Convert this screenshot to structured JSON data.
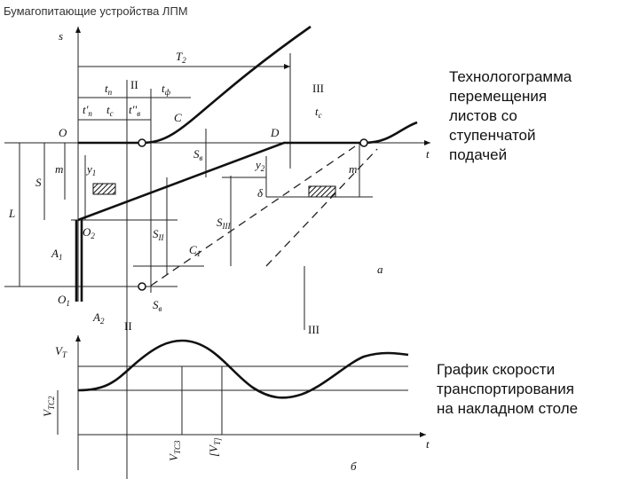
{
  "header": {
    "title": "Бумагопитающие устройства ЛПМ"
  },
  "captions": [
    {
      "lines": [
        "Технологограмма",
        "перемещения",
        "листов со",
        "ступенчатой",
        "подачей"
      ]
    },
    {
      "lines": [
        "График скорости",
        "транспортирования",
        "на накладном столе"
      ]
    }
  ],
  "labels": [
    {
      "main": "s"
    },
    {
      "main": "T",
      "sub": "2"
    },
    {
      "main": "t",
      "sub": "п"
    },
    {
      "main": "II"
    },
    {
      "main": "t",
      "sub": "ф"
    },
    {
      "main": "III"
    },
    {
      "main": "t'",
      "sub": "п"
    },
    {
      "main": "t",
      "sub": "с"
    },
    {
      "main": "t''",
      "sub": "в"
    },
    {
      "main": "C"
    },
    {
      "main": "O"
    },
    {
      "main": "D"
    },
    {
      "main": "t"
    },
    {
      "main": "S"
    },
    {
      "main": "m"
    },
    {
      "main": "y",
      "sub": "1"
    },
    {
      "main": "L"
    },
    {
      "main": "S",
      "sub": "в"
    },
    {
      "main": "y",
      "sub": "2"
    },
    {
      "main": "m"
    },
    {
      "main": "δ"
    },
    {
      "main": "O",
      "sub": "2"
    },
    {
      "main": "S",
      "sub": "II"
    },
    {
      "main": "S",
      "sub": "III"
    },
    {
      "main": "A",
      "sub": "1"
    },
    {
      "main": "C",
      "sub": "1"
    },
    {
      "main": "a"
    },
    {
      "main": "O",
      "sub": "1"
    },
    {
      "main": "A",
      "sub": "2"
    },
    {
      "main": "S",
      "sub": "в"
    },
    {
      "main": "II"
    },
    {
      "main": "III"
    },
    {
      "main": "V",
      "sub": "T"
    },
    {
      "main": "V",
      "sub": "TC2"
    },
    {
      "main": "V",
      "sub": "TC3"
    },
    {
      "main": "[V",
      "sub": "T]"
    },
    {
      "main": "t"
    },
    {
      "main": "б"
    },
    {
      "main": "t",
      "sub": "c"
    }
  ]
}
